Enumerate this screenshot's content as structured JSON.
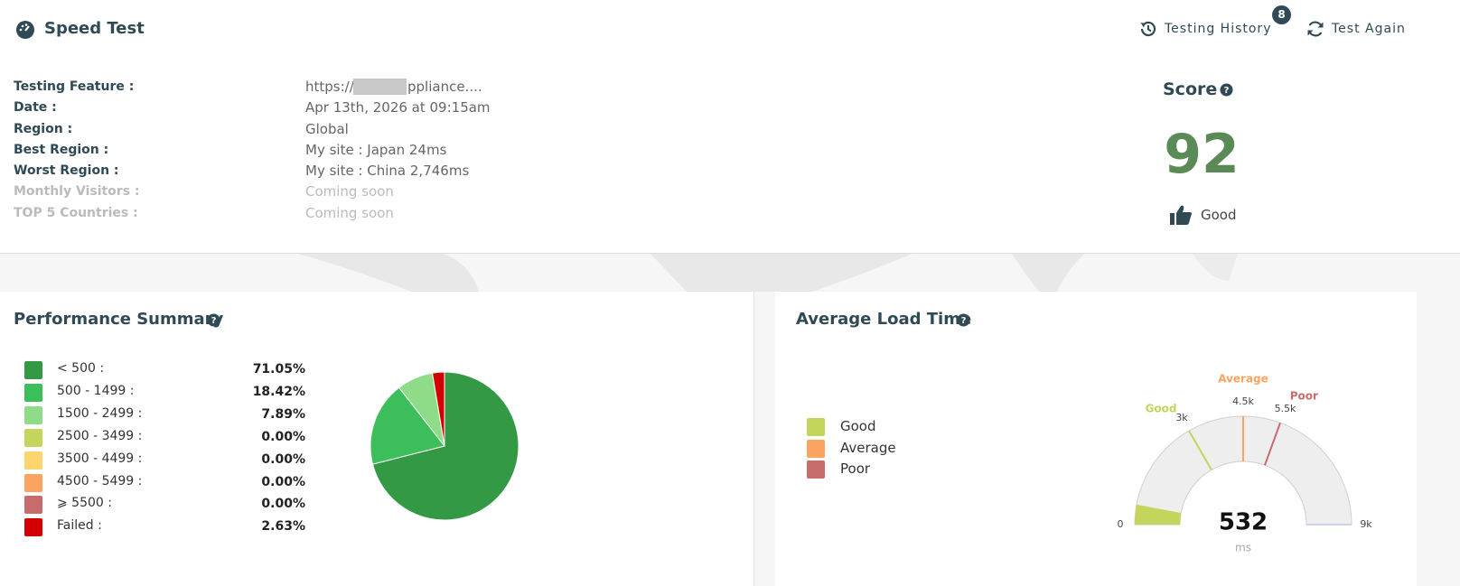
{
  "header": {
    "title": "Speed Test",
    "history": "Testing History",
    "history_count": 8,
    "again": "Test Again"
  },
  "info": {
    "rows": [
      {
        "label": "Testing Feature :",
        "value": "https://",
        "value_end": "ppliance...."
      },
      {
        "label": "Date :",
        "value": "Apr 13th, 2026 at 09:15am"
      },
      {
        "label": "Region :",
        "value": "Global"
      },
      {
        "label": "Best Region :",
        "value": "My site : Japan  24ms"
      },
      {
        "label": "Worst Region :",
        "value": "My site : China  2,746ms"
      },
      {
        "label": "Monthly Visitors :",
        "value": "Coming soon"
      },
      {
        "label": "TOP 5 Countries :",
        "value": "Coming soon"
      }
    ]
  },
  "score": {
    "title": "Score",
    "value": 92,
    "rating": "Good"
  },
  "performance": {
    "type": "pie",
    "title": "Performance Summary",
    "categories": [
      "< 500 :",
      "500 - 1499 :",
      "1500 - 2499 :",
      "2500 - 3499 :",
      "3500 - 4499 :",
      "4500 - 5499 :",
      "⩾ 5500 :",
      "Failed :"
    ],
    "values": [
      71.05,
      18.42,
      7.89,
      0,
      0,
      0,
      0,
      2.63
    ],
    "value_labels": [
      "71.05%",
      "18.42%",
      "7.89%",
      "0.00%",
      "0.00%",
      "0.00%",
      "0.00%",
      "2.63%"
    ],
    "colors": [
      "#339944",
      "#3cbe5a",
      "#8fdc88",
      "#c5d45a",
      "#fdd56e",
      "#fba462",
      "#c86b6b",
      "#d40000"
    ]
  },
  "load_time": {
    "type": "gauge",
    "title": "Average Load Time",
    "gauge": {
      "value": 532,
      "unit": "ms",
      "lim": [
        0,
        9000
      ],
      "ticks": [
        0,
        {
          "value": 9000,
          "label": "9k"
        }
      ],
      "color": "#c5d45a",
      "thresholds": [
        {
          "name": "Good",
          "color": "#c5d45a",
          "tick": {
            "value": 3000,
            "label": "3k"
          }
        },
        {
          "name": "Average",
          "color": "#fba462",
          "tick": {
            "value": 4500,
            "label": "4.5k"
          }
        },
        {
          "name": "Poor",
          "color": "#c86b6b",
          "tick": {
            "value": 5500,
            "label": "5.5k"
          }
        }
      ]
    }
  }
}
